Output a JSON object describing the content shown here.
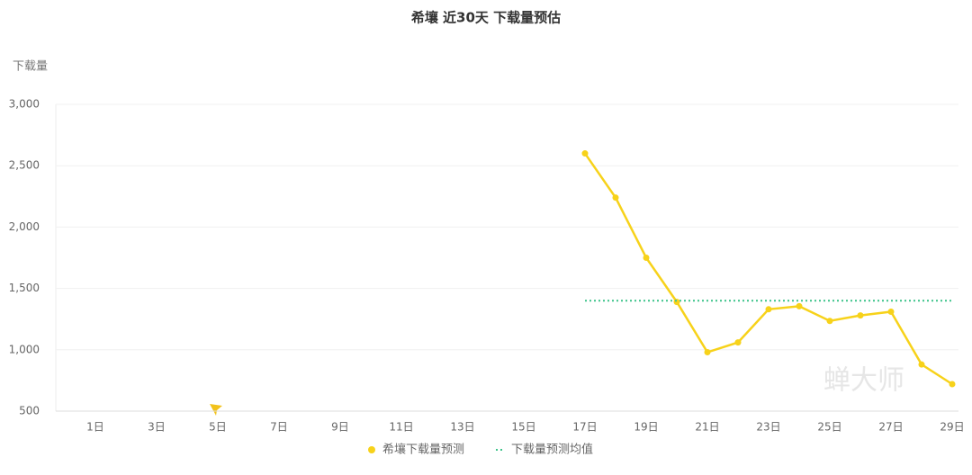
{
  "chart_data": {
    "type": "line",
    "title": "希壤 近30天 下载量预估",
    "y_label": "下载量",
    "watermark": "蝉大师",
    "categories": [
      "1日",
      null,
      "3日",
      null,
      "5日",
      null,
      "7日",
      null,
      "9日",
      null,
      "11日",
      null,
      "13日",
      null,
      "15日",
      null,
      "17日",
      null,
      "19日",
      null,
      "21日",
      null,
      "23日",
      null,
      "25日",
      null,
      "27日",
      null,
      "29日"
    ],
    "series": [
      {
        "name": "希壤下载量预测",
        "color": "#f7d21a",
        "style": "solid",
        "values": [
          null,
          null,
          null,
          null,
          null,
          null,
          null,
          null,
          null,
          null,
          null,
          null,
          null,
          null,
          null,
          null,
          2600,
          2240,
          1750,
          1390,
          980,
          1060,
          1330,
          1355,
          1235,
          1280,
          1310,
          880,
          720
        ]
      },
      {
        "name": "下载量预测均值",
        "color": "#3cc38a",
        "style": "dotted",
        "values": [
          null,
          null,
          null,
          null,
          null,
          null,
          null,
          null,
          null,
          null,
          null,
          null,
          null,
          null,
          null,
          null,
          1400,
          1400,
          1400,
          1400,
          1400,
          1400,
          1400,
          1400,
          1400,
          1400,
          1400,
          1400,
          1400
        ]
      }
    ],
    "ylim": [
      500,
      3000
    ],
    "yticks": [
      500,
      {
        "value": 1000,
        "label": "1,000"
      },
      {
        "value": 1500,
        "label": "1,500"
      },
      {
        "value": 2000,
        "label": "2,000"
      },
      {
        "value": 2500,
        "label": "2,500"
      },
      {
        "value": 3000,
        "label": "3,000"
      }
    ],
    "grid": true
  }
}
